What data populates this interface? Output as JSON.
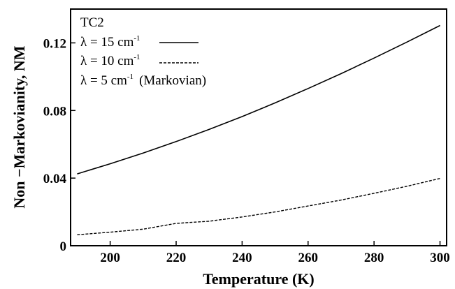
{
  "chart_data": {
    "type": "line",
    "title": "",
    "xlabel": "Temperature (K)",
    "ylabel": "Non −Markovianity, NM",
    "xlim": [
      188,
      302
    ],
    "ylim": [
      0,
      0.14
    ],
    "xticks": [
      200,
      220,
      240,
      260,
      280,
      300
    ],
    "xtick_labels": [
      "200",
      "220",
      "240",
      "260",
      "280",
      "300"
    ],
    "yticks": [
      0,
      0.04,
      0.08,
      0.12
    ],
    "ytick_labels": [
      "0",
      "0.04",
      "0.08",
      "0.12"
    ],
    "grid": false,
    "legend_title": "TC2",
    "legend_position": "top-left",
    "series": [
      {
        "name": "λ = 15 cm-1",
        "label_main": "λ = 15 cm",
        "label_sup": "-1",
        "style": "solid",
        "color": "#000000",
        "x": [
          190,
          200,
          210,
          220,
          230,
          240,
          250,
          260,
          270,
          280,
          290,
          300
        ],
        "y": [
          0.0425,
          0.0485,
          0.0548,
          0.0616,
          0.0688,
          0.0764,
          0.0845,
          0.093,
          0.1018,
          0.111,
          0.1205,
          0.1303
        ]
      },
      {
        "name": "λ = 10 cm-1",
        "label_main": "λ = 10 cm",
        "label_sup": "-1",
        "style": "dashed",
        "color": "#000000",
        "x": [
          190,
          200,
          210,
          220,
          230,
          240,
          250,
          260,
          270,
          280,
          290,
          300
        ],
        "y": [
          0.0065,
          0.008,
          0.0098,
          0.0132,
          0.0145,
          0.017,
          0.02,
          0.0235,
          0.027,
          0.031,
          0.0352,
          0.0398
        ]
      },
      {
        "name": "λ = 5 cm-1 (Markovian)",
        "label_main": "λ =  5 cm",
        "label_sup": "-1",
        "label_suffix": "(Markovian)",
        "style": "solid",
        "color": "#000000",
        "x": [
          190,
          200,
          210,
          220,
          230,
          240,
          250,
          260,
          270,
          280,
          290,
          300
        ],
        "y": [
          0,
          0,
          0,
          0,
          0,
          0,
          0,
          0,
          0,
          0,
          0,
          0
        ]
      }
    ]
  }
}
